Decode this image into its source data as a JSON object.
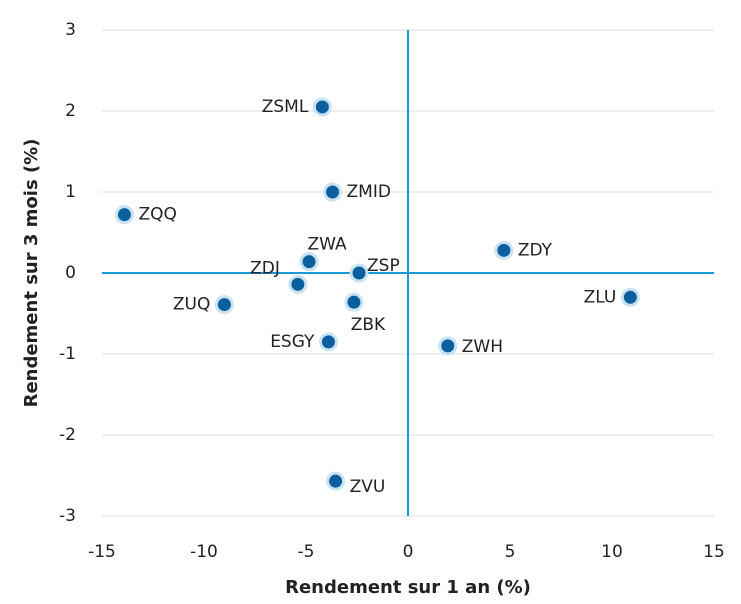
{
  "chart_data": {
    "type": "scatter",
    "xlabel": "Rendement sur 1 an (%)",
    "ylabel": "Rendement sur 3 mois (%)",
    "labels": [
      "ZSML",
      "ZMID",
      "ZQQ",
      "ZWA",
      "ZDJ",
      "ZSP",
      "ZUQ",
      "ZBK",
      "ESGY",
      "ZVU",
      "ZDY",
      "ZLU",
      "ZWH"
    ],
    "x": [
      -4.2,
      -3.7,
      -13.9,
      -4.85,
      -5.4,
      -2.4,
      -9.0,
      -2.65,
      -3.9,
      -3.55,
      4.7,
      10.9,
      1.95
    ],
    "y": [
      2.05,
      1.0,
      0.72,
      0.14,
      -0.14,
      0.0,
      -0.39,
      -0.36,
      -0.85,
      -2.57,
      0.28,
      -0.3,
      -0.9
    ],
    "color": "#0b5f9e",
    "axis_color": "#1a9bd7",
    "xlim": [
      -15,
      15
    ],
    "xticks": [
      -15,
      -10,
      -5,
      0,
      5,
      10,
      15
    ],
    "ylim": [
      -3,
      3
    ],
    "yticks": [
      -3,
      -2,
      -1,
      0,
      1,
      2,
      3
    ],
    "grid": true
  }
}
